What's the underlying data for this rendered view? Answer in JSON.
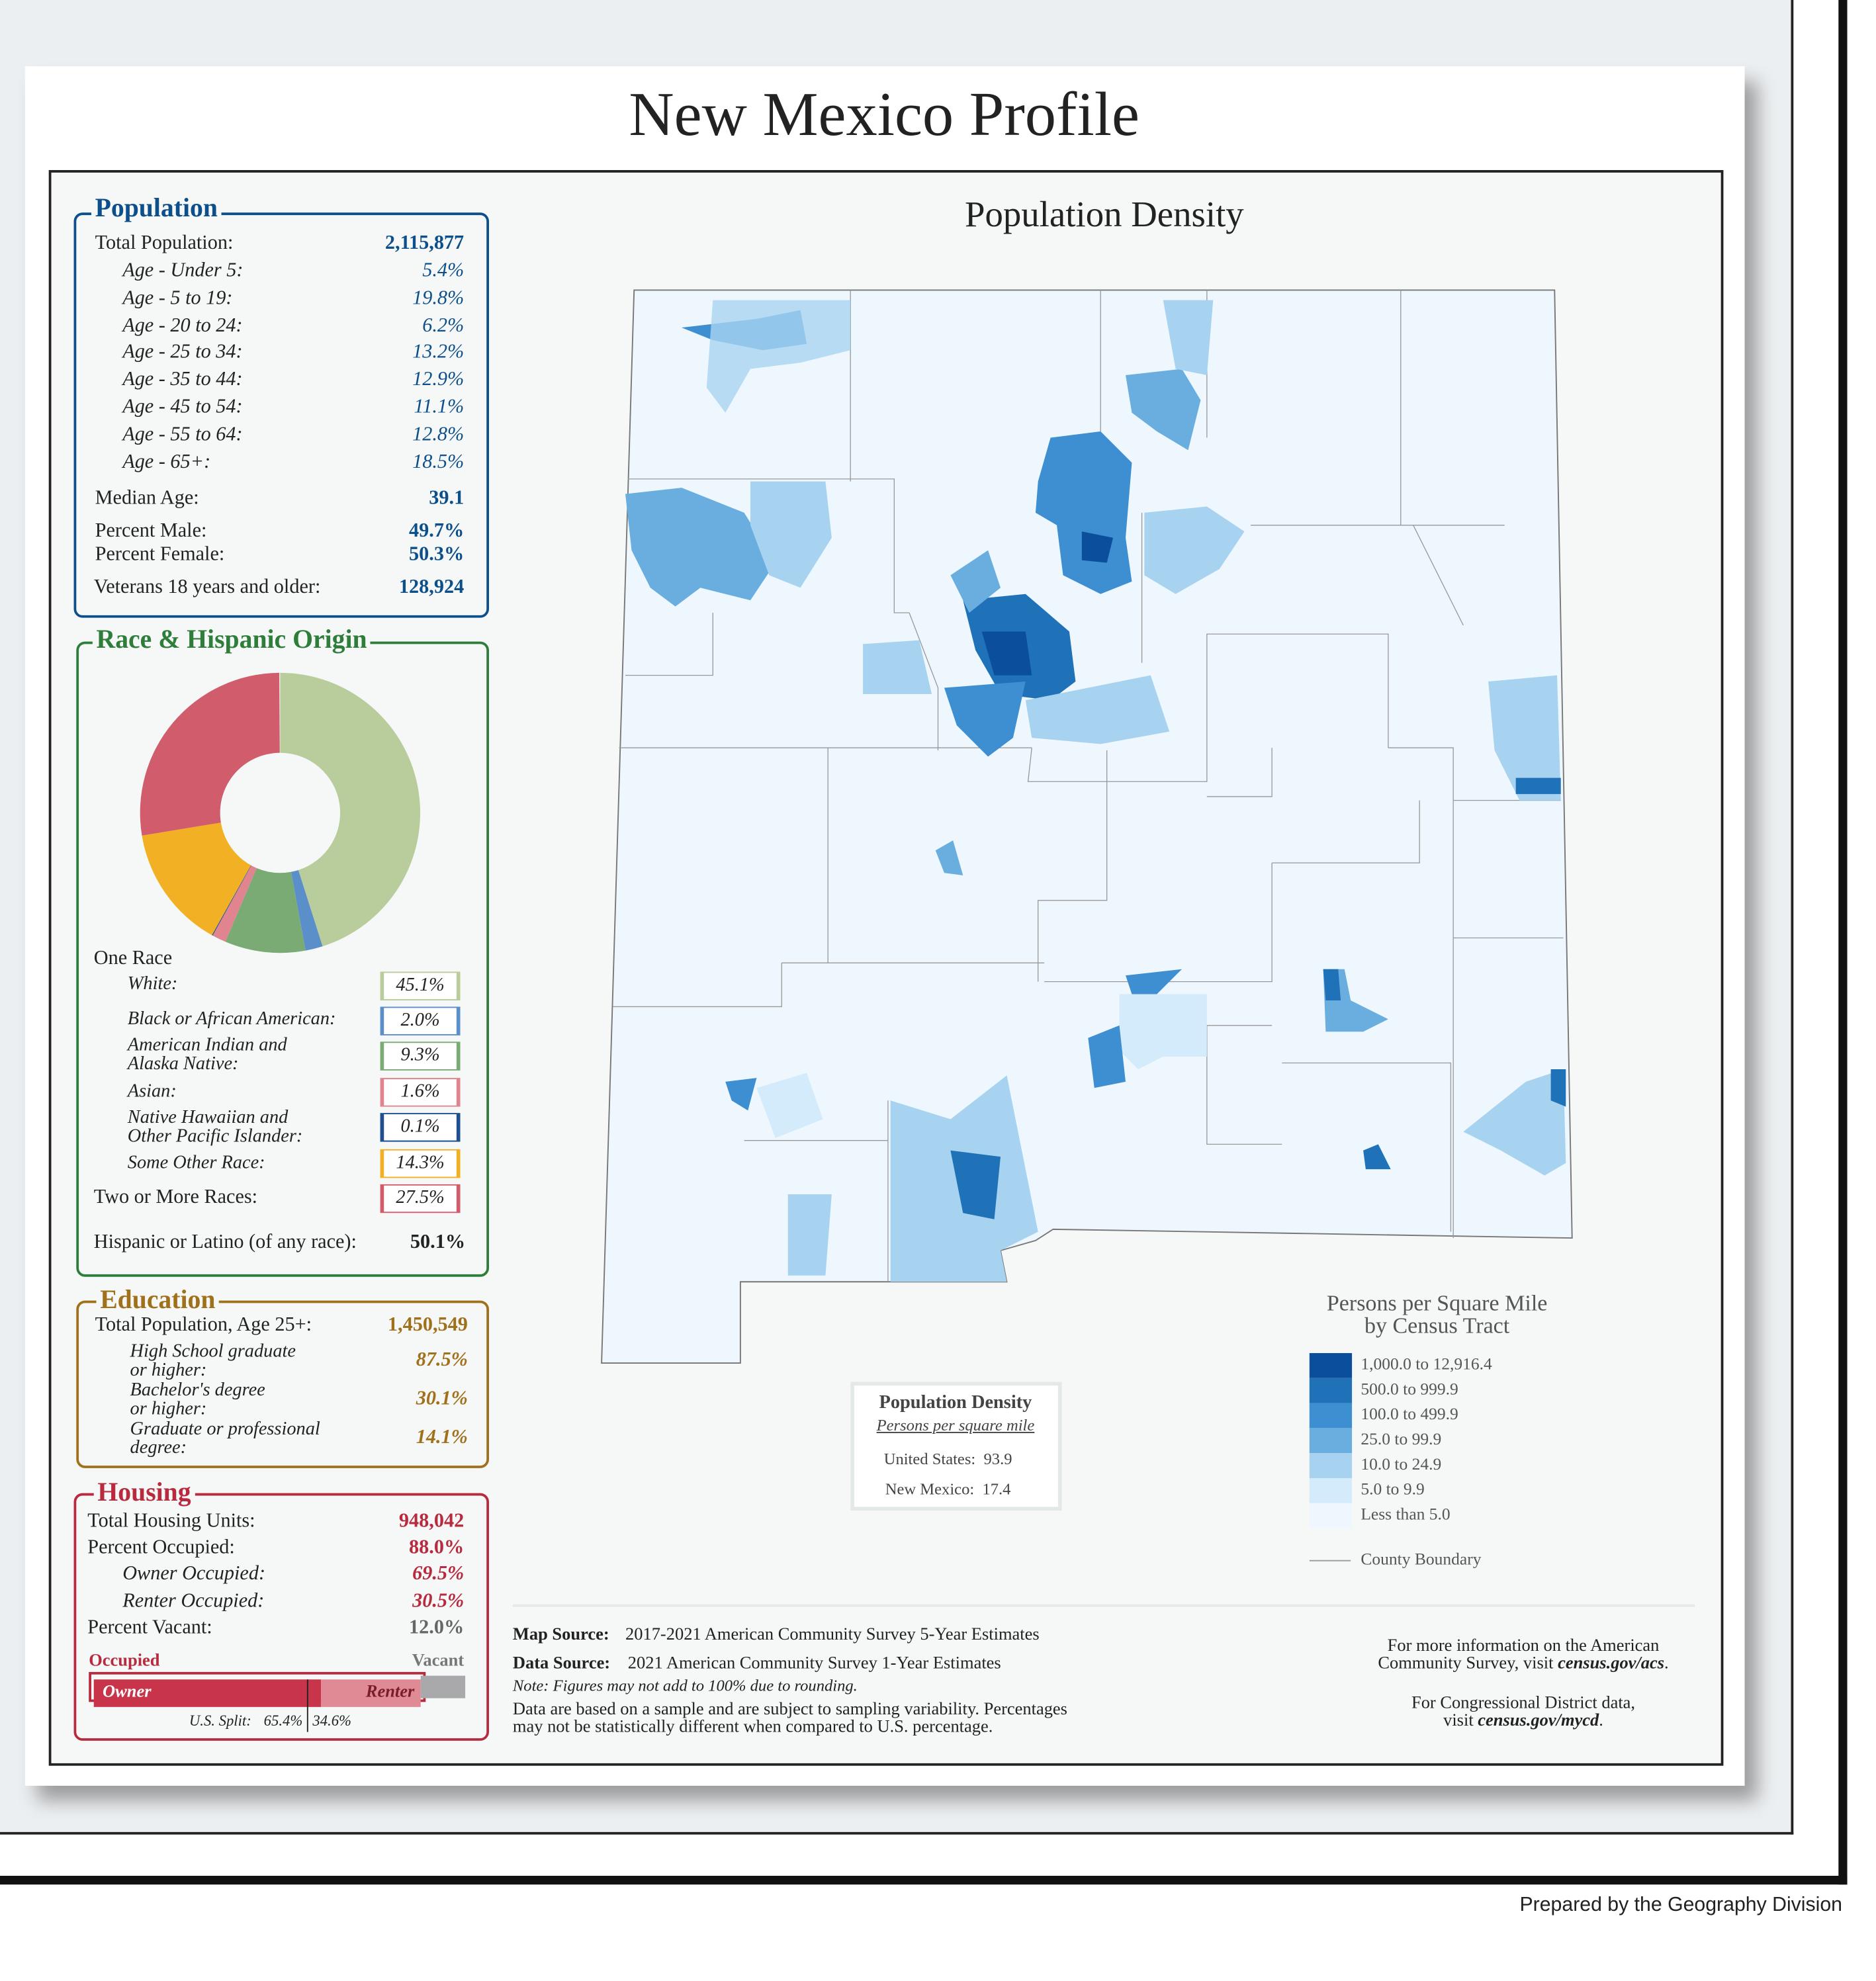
{
  "header": {
    "title": "New Mexico Profile"
  },
  "population": {
    "heading": "Population",
    "total": {
      "label": "Total Population:",
      "value": "2,115,877"
    },
    "ages": [
      {
        "label": "Age - Under 5:",
        "value": "5.4%"
      },
      {
        "label": "Age - 5 to 19:",
        "value": "19.8%"
      },
      {
        "label": "Age - 20 to 24:",
        "value": "6.2%"
      },
      {
        "label": "Age - 25 to 34:",
        "value": "13.2%"
      },
      {
        "label": "Age - 35 to 44:",
        "value": "12.9%"
      },
      {
        "label": "Age - 45 to 54:",
        "value": "11.1%"
      },
      {
        "label": "Age - 55 to 64:",
        "value": "12.8%"
      },
      {
        "label": "Age - 65+:",
        "value": "18.5%"
      }
    ],
    "rows": [
      {
        "label": "Median Age:",
        "value": "39.1"
      },
      {
        "label": "Percent Male:",
        "value": "49.7%"
      },
      {
        "label": "Percent Female:",
        "value": "50.3%"
      },
      {
        "label": "Veterans 18 years and older:",
        "value": "128,924"
      }
    ]
  },
  "race": {
    "heading": "Race & Hispanic Origin",
    "one_race": "One Race",
    "items": [
      {
        "label": "White:",
        "value": 45.1,
        "value_label": "45.1%",
        "color": "#b9cc9b"
      },
      {
        "label": "Black or African American:",
        "value": 2.0,
        "value_label": "2.0%",
        "color": "#5b8fc9"
      },
      {
        "label": "American Indian and\n  Alaska Native:",
        "value": 9.3,
        "value_label": "9.3%",
        "color": "#7bab74"
      },
      {
        "label": "Asian:",
        "value": 1.6,
        "value_label": "1.6%",
        "color": "#e0848f"
      },
      {
        "label": "Native Hawaiian and\n  Other Pacific Islander:",
        "value": 0.1,
        "value_label": "0.1%",
        "color": "#1f4f8f"
      },
      {
        "label": "Some Other Race:",
        "value": 14.3,
        "value_label": "14.3%",
        "color": "#f2b124"
      },
      {
        "label": "Two or More Races:",
        "value": 27.5,
        "value_label": "27.5%",
        "color": "#d15c6c"
      }
    ],
    "hispanic": {
      "label": "Hispanic or Latino (of any race):",
      "value": "50.1%"
    }
  },
  "education": {
    "heading": "Education",
    "total": {
      "label": "Total Population, Age 25+:",
      "value": "1,450,549"
    },
    "items": [
      {
        "label": "High School  graduate\n   or higher:",
        "value": "87.5%"
      },
      {
        "label": "Bachelor's degree\n   or higher:",
        "value": "30.1%"
      },
      {
        "label": "Graduate or professional\n   degree:",
        "value": "14.1%"
      }
    ]
  },
  "housing": {
    "heading": "Housing",
    "total": {
      "label": "Total Housing Units:",
      "value": "948,042"
    },
    "occupied": {
      "label": "Percent Occupied:",
      "value": 88.0,
      "value_label": "88.0%"
    },
    "owner": {
      "label": "Owner Occupied:",
      "value": 69.5,
      "value_label": "69.5%"
    },
    "renter": {
      "label": "Renter Occupied:",
      "value": 30.5,
      "value_label": "30.5%"
    },
    "vacant": {
      "label": "Percent Vacant:",
      "value": 12.0,
      "value_label": "12.0%"
    },
    "bar": {
      "occupied": "Occupied",
      "vacant": "Vacant",
      "owner": "Owner",
      "renter": "Renter"
    },
    "us_split": {
      "label": "U.S. Split:",
      "owner": 65.4,
      "owner_label": "65.4%",
      "renter": 34.6,
      "renter_label": "34.6%"
    }
  },
  "map": {
    "title": "Population Density",
    "info": {
      "title": "Population Density",
      "subtitle": "Persons per square mile",
      "rows": [
        "United States:  93.9",
        "New Mexico:  17.4"
      ]
    },
    "legend": {
      "title": "Persons per Square Mile\nby Census Tract",
      "classes": [
        {
          "label": "1,000.0 to 12,916.4",
          "color": "#0b4f9c"
        },
        {
          "label": "500.0 to 999.9",
          "color": "#1f72b8"
        },
        {
          "label": "100.0 to 499.9",
          "color": "#3d8fd1"
        },
        {
          "label": "25.0 to 99.9",
          "color": "#6aaee0"
        },
        {
          "label": "10.0 to 24.9",
          "color": "#a7d3f0"
        },
        {
          "label": "5.0 to 9.9",
          "color": "#d3ebfa"
        },
        {
          "label": "Less than 5.0",
          "color": "#eef7fd"
        }
      ],
      "boundary": "County Boundary"
    }
  },
  "footer": {
    "map_source": {
      "label": "Map Source:",
      "text": "2017-2021 American Community Survey 5-Year Estimates"
    },
    "data_source": {
      "label": "Data Source:",
      "text": "2021 American Community Survey 1-Year Estimates"
    },
    "note": "Note: Figures may not add to 100% due to rounding.",
    "disclaimer": "Data are based on a sample and are subject to sampling variability. Percentages\nmay not be statistically different when compared to U.S. percentage.",
    "acs": {
      "text": "For more information on the American\nCommunity Survey, visit ",
      "link": "census.gov/acs",
      "end": "."
    },
    "mycd": {
      "text": "For Congressional District data,\nvisit ",
      "link": "census.gov/mycd",
      "end": "."
    }
  },
  "credit": "Prepared by the Geography Division"
}
